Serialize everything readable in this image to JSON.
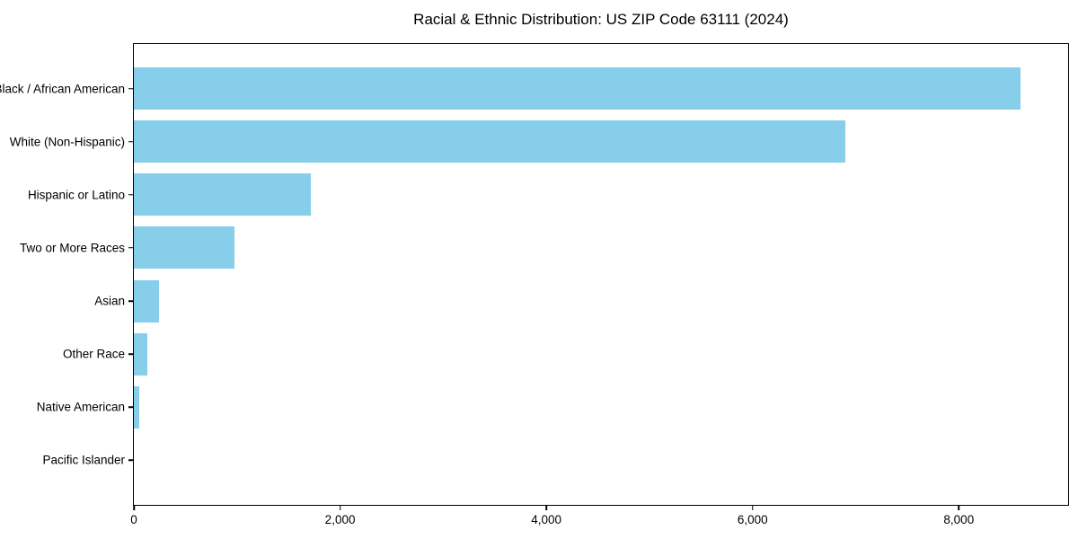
{
  "chart_data": {
    "type": "bar",
    "orientation": "horizontal",
    "title": "Racial & Ethnic Distribution: US ZIP Code 63111 (2024)",
    "categories": [
      "Black / African American",
      "White (Non-Hispanic)",
      "Hispanic or Latino",
      "Two or More Races",
      "Asian",
      "Other Race",
      "Native American",
      "Pacific Islander"
    ],
    "values": [
      8600,
      6900,
      1720,
      975,
      240,
      130,
      50,
      0
    ],
    "xlabel": "",
    "ylabel": "",
    "xlim": [
      0,
      9060
    ],
    "x_ticks": [
      0,
      2000,
      4000,
      6000,
      8000
    ],
    "x_tick_labels": [
      "0",
      "2,000",
      "4,000",
      "6,000",
      "8,000"
    ],
    "bar_color": "#87CEEB",
    "axis_color": "#000000",
    "background_color": "#ffffff",
    "grid": false,
    "legend_position": "none"
  }
}
